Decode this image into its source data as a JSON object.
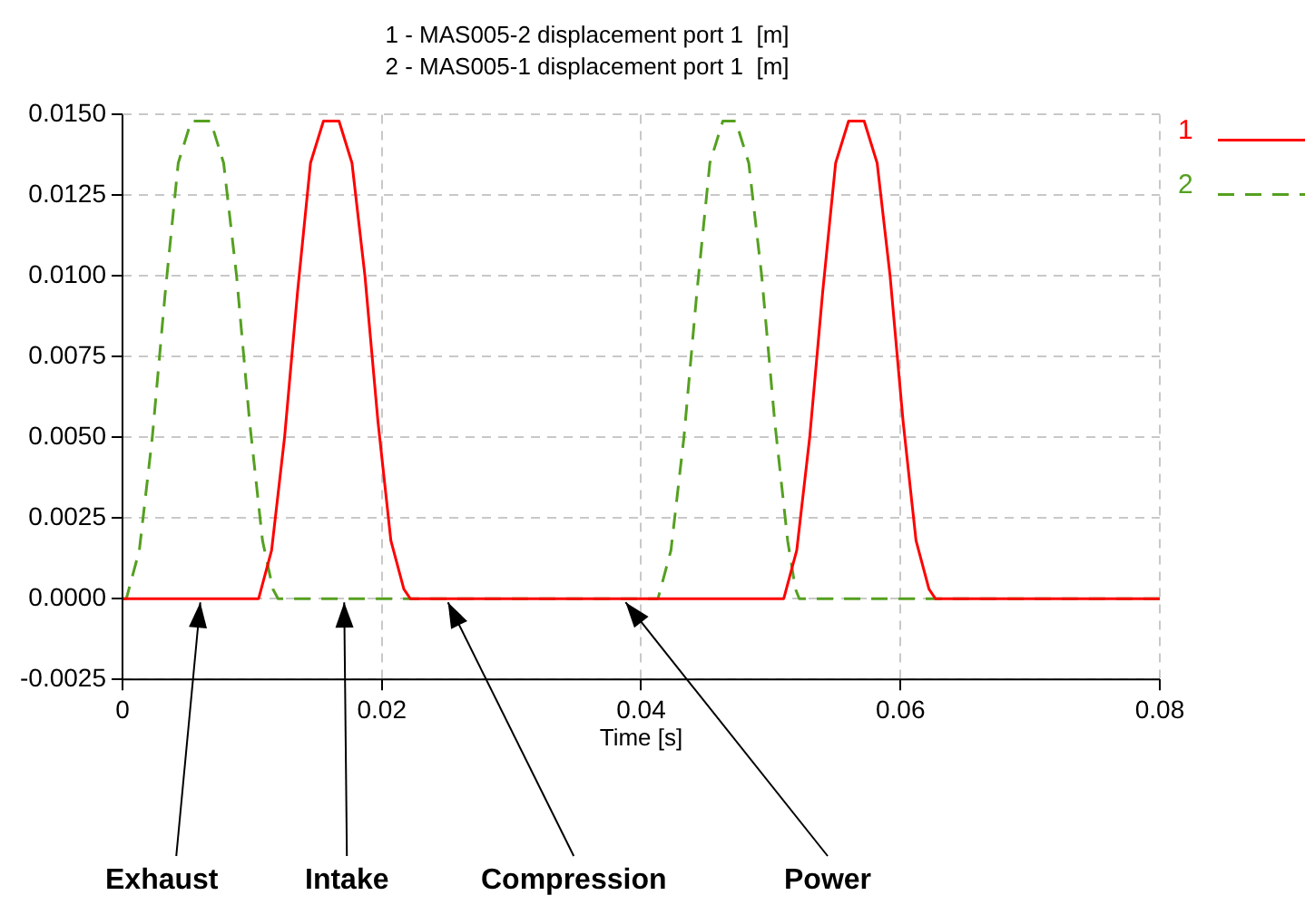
{
  "chart_data": {
    "type": "line",
    "title": "1 - MAS005-2 displacement port 1  [m]",
    "subtitle": "2 - MAS005-1 displacement port 1  [m]",
    "xlabel": "Time [s]",
    "xlim": [
      0,
      0.08
    ],
    "xticks": [
      0,
      0.02,
      0.04,
      0.06,
      0.08
    ],
    "ylim": [
      -0.0025,
      0.015
    ],
    "yticks": [
      {
        "value": -0.0025,
        "label": "-0.0025"
      },
      {
        "value": 0,
        "label": "0.0000"
      },
      {
        "value": 0.0025,
        "label": "0.0025"
      },
      {
        "value": 0.005,
        "label": "0.0050"
      },
      {
        "value": 0.0075,
        "label": "0.0075"
      },
      {
        "value": 0.01,
        "label": "0.0100"
      },
      {
        "value": 0.0125,
        "label": "0.0125"
      },
      {
        "value": 0.015,
        "label": "0.0150"
      }
    ],
    "grid": true,
    "legend": "right",
    "marker": "none",
    "series": [
      {
        "name": "1",
        "color": "#ff0000",
        "line_style": "solid",
        "x": [
          0,
          0.0105,
          0.0115,
          0.0125,
          0.0135,
          0.0145,
          0.0155,
          0.0167,
          0.0177,
          0.0187,
          0.0197,
          0.0207,
          0.0217,
          0.0222,
          0.051,
          0.052,
          0.053,
          0.054,
          0.055,
          0.056,
          0.0572,
          0.0582,
          0.0592,
          0.0602,
          0.0612,
          0.0622,
          0.0627,
          0.08
        ],
        "values": [
          0,
          0,
          0.0015,
          0.005,
          0.0095,
          0.0135,
          0.0148,
          0.0148,
          0.0135,
          0.01,
          0.0055,
          0.0018,
          0.0003,
          0,
          0,
          0.0015,
          0.005,
          0.0095,
          0.0135,
          0.0148,
          0.0148,
          0.0135,
          0.01,
          0.0055,
          0.0018,
          0.0003,
          0,
          0
        ]
      },
      {
        "name": "2",
        "color": "#55a020",
        "line_style": "dashed",
        "x": [
          0,
          0.0003,
          0.0013,
          0.0023,
          0.0033,
          0.0043,
          0.0053,
          0.0068,
          0.0078,
          0.0088,
          0.0098,
          0.0108,
          0.0116,
          0.012,
          0.0413,
          0.0423,
          0.0433,
          0.0443,
          0.0453,
          0.0463,
          0.0473,
          0.0483,
          0.0493,
          0.0503,
          0.0513,
          0.0519,
          0.0522,
          0.08
        ],
        "values": [
          0,
          0,
          0.0015,
          0.005,
          0.0095,
          0.0135,
          0.0148,
          0.0148,
          0.0135,
          0.01,
          0.0055,
          0.0018,
          0.0003,
          0,
          0,
          0.0015,
          0.005,
          0.0095,
          0.0135,
          0.0148,
          0.0148,
          0.0135,
          0.01,
          0.0055,
          0.0018,
          0.0003,
          0,
          0
        ]
      }
    ],
    "annotations": [
      {
        "text": "Exhaust",
        "x": 0.006,
        "y": 0
      },
      {
        "text": "Intake",
        "x": 0.0171,
        "y": 0
      },
      {
        "text": "Compression",
        "x": 0.0251,
        "y": 0
      },
      {
        "text": "Power",
        "x": 0.0388,
        "y": 0
      }
    ]
  }
}
